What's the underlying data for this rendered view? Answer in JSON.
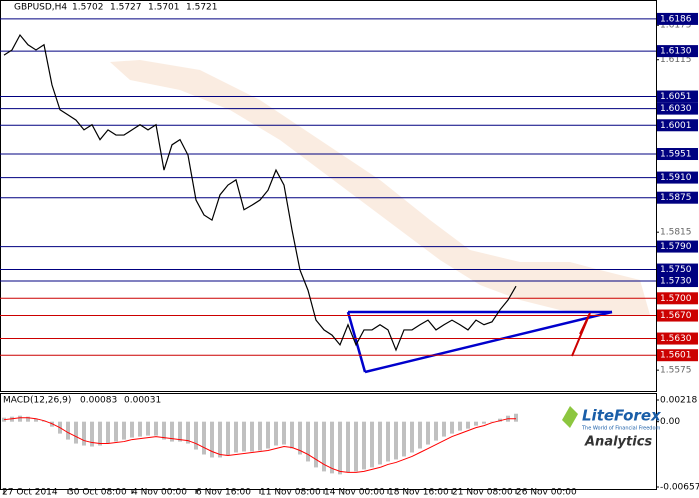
{
  "chart_data": [
    {
      "type": "line",
      "title": "GBPUSD,H4",
      "ohlc": [
        1.5702,
        1.5727,
        1.5701,
        1.5721
      ],
      "color": "#000000",
      "categories": [
        "27 Oct 2014",
        null,
        null,
        null,
        null,
        null,
        null,
        null,
        "30 Oct 08:00",
        null,
        null,
        null,
        null,
        null,
        null,
        null,
        "4 Nov 00:00",
        null,
        null,
        null,
        null,
        null,
        null,
        null,
        "6 Nov 16:00",
        null,
        null,
        null,
        null,
        null,
        null,
        null,
        "11 Nov 08:00",
        null,
        null,
        null,
        null,
        null,
        null,
        null,
        "14 Nov 00:00",
        null,
        null,
        null,
        null,
        null,
        null,
        null,
        "18 Nov 16:00",
        null,
        null,
        null,
        null,
        null,
        null,
        null,
        "21 Nov 08:00",
        null,
        null,
        null,
        null,
        null,
        null,
        null,
        "26 Nov 00:00"
      ],
      "values": [
        1.6123,
        1.6132,
        1.6158,
        1.6141,
        1.6132,
        1.6141,
        1.6071,
        1.6028,
        1.6019,
        1.601,
        1.5993,
        1.6002,
        1.5976,
        1.5993,
        1.5984,
        1.5984,
        1.5993,
        1.6002,
        1.5993,
        1.6002,
        1.5923,
        1.5967,
        1.5976,
        1.5949,
        1.5871,
        1.5845,
        1.5836,
        1.588,
        1.5897,
        1.5906,
        1.5854,
        1.5862,
        1.5871,
        1.5888,
        1.5923,
        1.5897,
        1.5819,
        1.5749,
        1.5714,
        1.5662,
        1.5645,
        1.5636,
        1.5619,
        1.5654,
        1.5619,
        1.5645,
        1.5645,
        1.5654,
        1.5645,
        1.561,
        1.5645,
        1.5645,
        1.5654,
        1.5662,
        1.5645,
        1.5654,
        1.5662,
        1.5654,
        1.5645,
        1.5662,
        1.5654,
        1.5659,
        1.568,
        1.5697,
        1.5721
      ],
      "ylim": [
        1.5537,
        1.6205
      ],
      "yticks": [
        1.6175,
        1.6115,
        1.5815,
        1.5575
      ],
      "levels": [
        {
          "value": 1.6186,
          "label": "1.6186",
          "color": "#000080"
        },
        {
          "value": 1.613,
          "label": "1.6130",
          "color": "#000080"
        },
        {
          "value": 1.6051,
          "label": "1.6051",
          "color": "#000080"
        },
        {
          "value": 1.603,
          "label": "1.6030",
          "color": "#000080"
        },
        {
          "value": 1.6001,
          "label": "1.6001",
          "color": "#000080"
        },
        {
          "value": 1.5951,
          "label": "1.5951",
          "color": "#000080"
        },
        {
          "value": 1.591,
          "label": "1.5910",
          "color": "#000080"
        },
        {
          "value": 1.5875,
          "label": "1.5875",
          "color": "#000080"
        },
        {
          "value": 1.579,
          "label": "1.5790",
          "color": "#000080"
        },
        {
          "value": 1.575,
          "label": "1.5750",
          "color": "#000080"
        },
        {
          "value": 1.573,
          "label": "1.5730",
          "color": "#000080"
        },
        {
          "value": 1.57,
          "label": "1.5700",
          "color": "#cc0000"
        },
        {
          "value": 1.567,
          "label": "1.5670",
          "color": "#cc0000"
        },
        {
          "value": 1.563,
          "label": "1.5630",
          "color": "#cc0000"
        },
        {
          "value": 1.5601,
          "label": "1.5601",
          "color": "#cc0000"
        }
      ]
    },
    {
      "type": "macd",
      "title": "MACD(12,26,9)",
      "readings": [
        0.00083,
        0.00031
      ],
      "series": [
        {
          "color": "#c0c0c0",
          "values": [
            0.0004,
            0.0005,
            0.0006,
            0.0005,
            0.0003,
            0.0001,
            -0.0005,
            -0.0012,
            -0.0018,
            -0.0022,
            -0.0024,
            -0.0025,
            -0.0024,
            -0.0022,
            -0.002,
            -0.0018,
            -0.0016,
            -0.0015,
            -0.0014,
            -0.0014,
            -0.0018,
            -0.002,
            -0.002,
            -0.0022,
            -0.0028,
            -0.0033,
            -0.0036,
            -0.0036,
            -0.0034,
            -0.0031,
            -0.003,
            -0.003,
            -0.0029,
            -0.0027,
            -0.0024,
            -0.0023,
            -0.0027,
            -0.0033,
            -0.004,
            -0.0046,
            -0.005,
            -0.0052,
            -0.0053,
            -0.0051,
            -0.005,
            -0.0048,
            -0.0046,
            -0.0043,
            -0.004,
            -0.0038,
            -0.0035,
            -0.0031,
            -0.0027,
            -0.0023,
            -0.0019,
            -0.0015,
            -0.0012,
            -0.0009,
            -0.0007,
            -0.0004,
            -0.0002,
            0.0,
            0.0003,
            0.0006,
            0.0008
          ]
        },
        {
          "color": "#ff0000",
          "values": [
            0.0002,
            0.0003,
            0.0004,
            0.0004,
            0.0003,
            0.0001,
            -0.0002,
            -0.0006,
            -0.0011,
            -0.0015,
            -0.0019,
            -0.0021,
            -0.0022,
            -0.0022,
            -0.0021,
            -0.002,
            -0.0018,
            -0.0017,
            -0.0016,
            -0.0015,
            -0.0016,
            -0.0017,
            -0.0018,
            -0.0019,
            -0.0022,
            -0.0026,
            -0.003,
            -0.0033,
            -0.0034,
            -0.0033,
            -0.0032,
            -0.0031,
            -0.003,
            -0.0029,
            -0.0027,
            -0.0025,
            -0.0026,
            -0.0029,
            -0.0033,
            -0.0038,
            -0.0043,
            -0.0047,
            -0.005,
            -0.0051,
            -0.0051,
            -0.005,
            -0.0048,
            -0.0046,
            -0.0043,
            -0.0041,
            -0.0038,
            -0.0035,
            -0.0031,
            -0.0027,
            -0.0023,
            -0.0019,
            -0.0015,
            -0.0012,
            -0.0009,
            -0.0006,
            -0.0004,
            -0.0001,
            0.0001,
            0.0003,
            0.0003
          ]
        }
      ],
      "ylim": [
        -0.00657,
        0.00218
      ],
      "yticks": [
        0.00218,
        {
          "value": 0,
          "label": "0.00"
        },
        -0.00657
      ]
    }
  ],
  "branding": {
    "name": "LiteForex",
    "tagline": "The World of Financial Freedom",
    "product": "Analytics"
  }
}
